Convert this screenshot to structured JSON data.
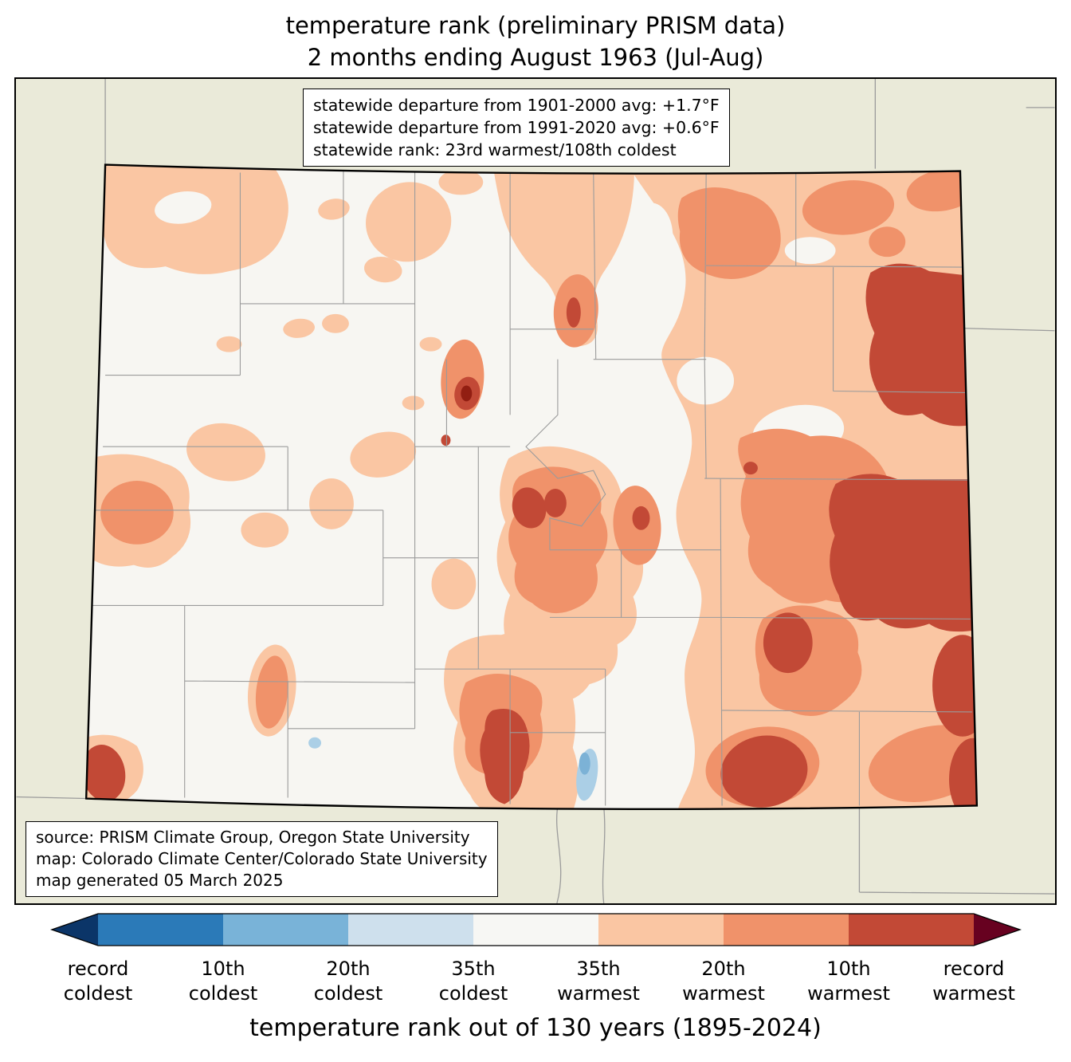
{
  "title": {
    "line1": "temperature rank (preliminary PRISM data)",
    "line2": "2 months ending August 1963 (Jul-Aug)"
  },
  "stats_box": {
    "lines": [
      "statewide departure from 1901-2000 avg: +1.7°F",
      "statewide departure from 1991-2020 avg: +0.6°F",
      "statewide rank: 23rd warmest/108th coldest"
    ]
  },
  "source_box": {
    "lines": [
      "source: PRISM Climate Group, Oregon State University",
      "map: Colorado Climate Center/Colorado State University",
      "map generated 05 March 2025"
    ]
  },
  "colorbar": {
    "caption": "temperature rank out of 130 years (1895-2024)",
    "arrow_left_color": "#0b3568",
    "arrow_right_color": "#670120",
    "segments": [
      "#2b7ab8",
      "#79b3d8",
      "#cee0ed",
      "#f7f7f4",
      "#fac6a3",
      "#f0926a",
      "#c24936"
    ],
    "labels": [
      {
        "line1": "record",
        "line2": "coldest"
      },
      {
        "line1": "10th",
        "line2": "coldest"
      },
      {
        "line1": "20th",
        "line2": "coldest"
      },
      {
        "line1": "35th",
        "line2": "coldest"
      },
      {
        "line1": "35th",
        "line2": "warmest"
      },
      {
        "line1": "20th",
        "line2": "warmest"
      },
      {
        "line1": "10th",
        "line2": "warmest"
      },
      {
        "line1": "record",
        "line2": "warmest"
      }
    ]
  },
  "palette": {
    "background-outside": "#eaead9",
    "base-white": "#f7f6f2",
    "rank-warm-35": "#fac6a3",
    "rank-warm-20": "#f0926a",
    "rank-warm-10": "#c24936",
    "rank-record-warm-spot": "#921e12",
    "rank-cool-spot": "#abcfe6",
    "rank-cool-spot-core": "#7cb2d6",
    "county-line": "#9b9b9b",
    "state-border": "#000000"
  }
}
